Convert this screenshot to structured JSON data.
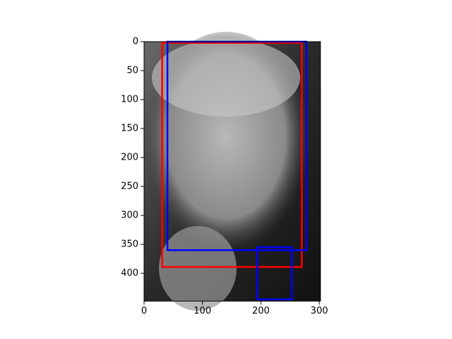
{
  "chart_data": {
    "type": "image",
    "xlim": [
      0,
      302
    ],
    "xticks": [
      0,
      100,
      200,
      300
    ],
    "ylim": [
      448,
      0
    ],
    "yticks": [
      0,
      50,
      100,
      150,
      200,
      250,
      300,
      350,
      400
    ],
    "boxes": [
      {
        "color": "#ff0000",
        "x0": 31,
        "y0": 2,
        "x1": 270,
        "y1": 389
      },
      {
        "color": "#0000ff",
        "x0": 40,
        "y0": 0,
        "x1": 278,
        "y1": 360
      },
      {
        "color": "#0000ff",
        "x0": 194,
        "y0": 355,
        "x1": 253,
        "y1": 445
      }
    ]
  }
}
